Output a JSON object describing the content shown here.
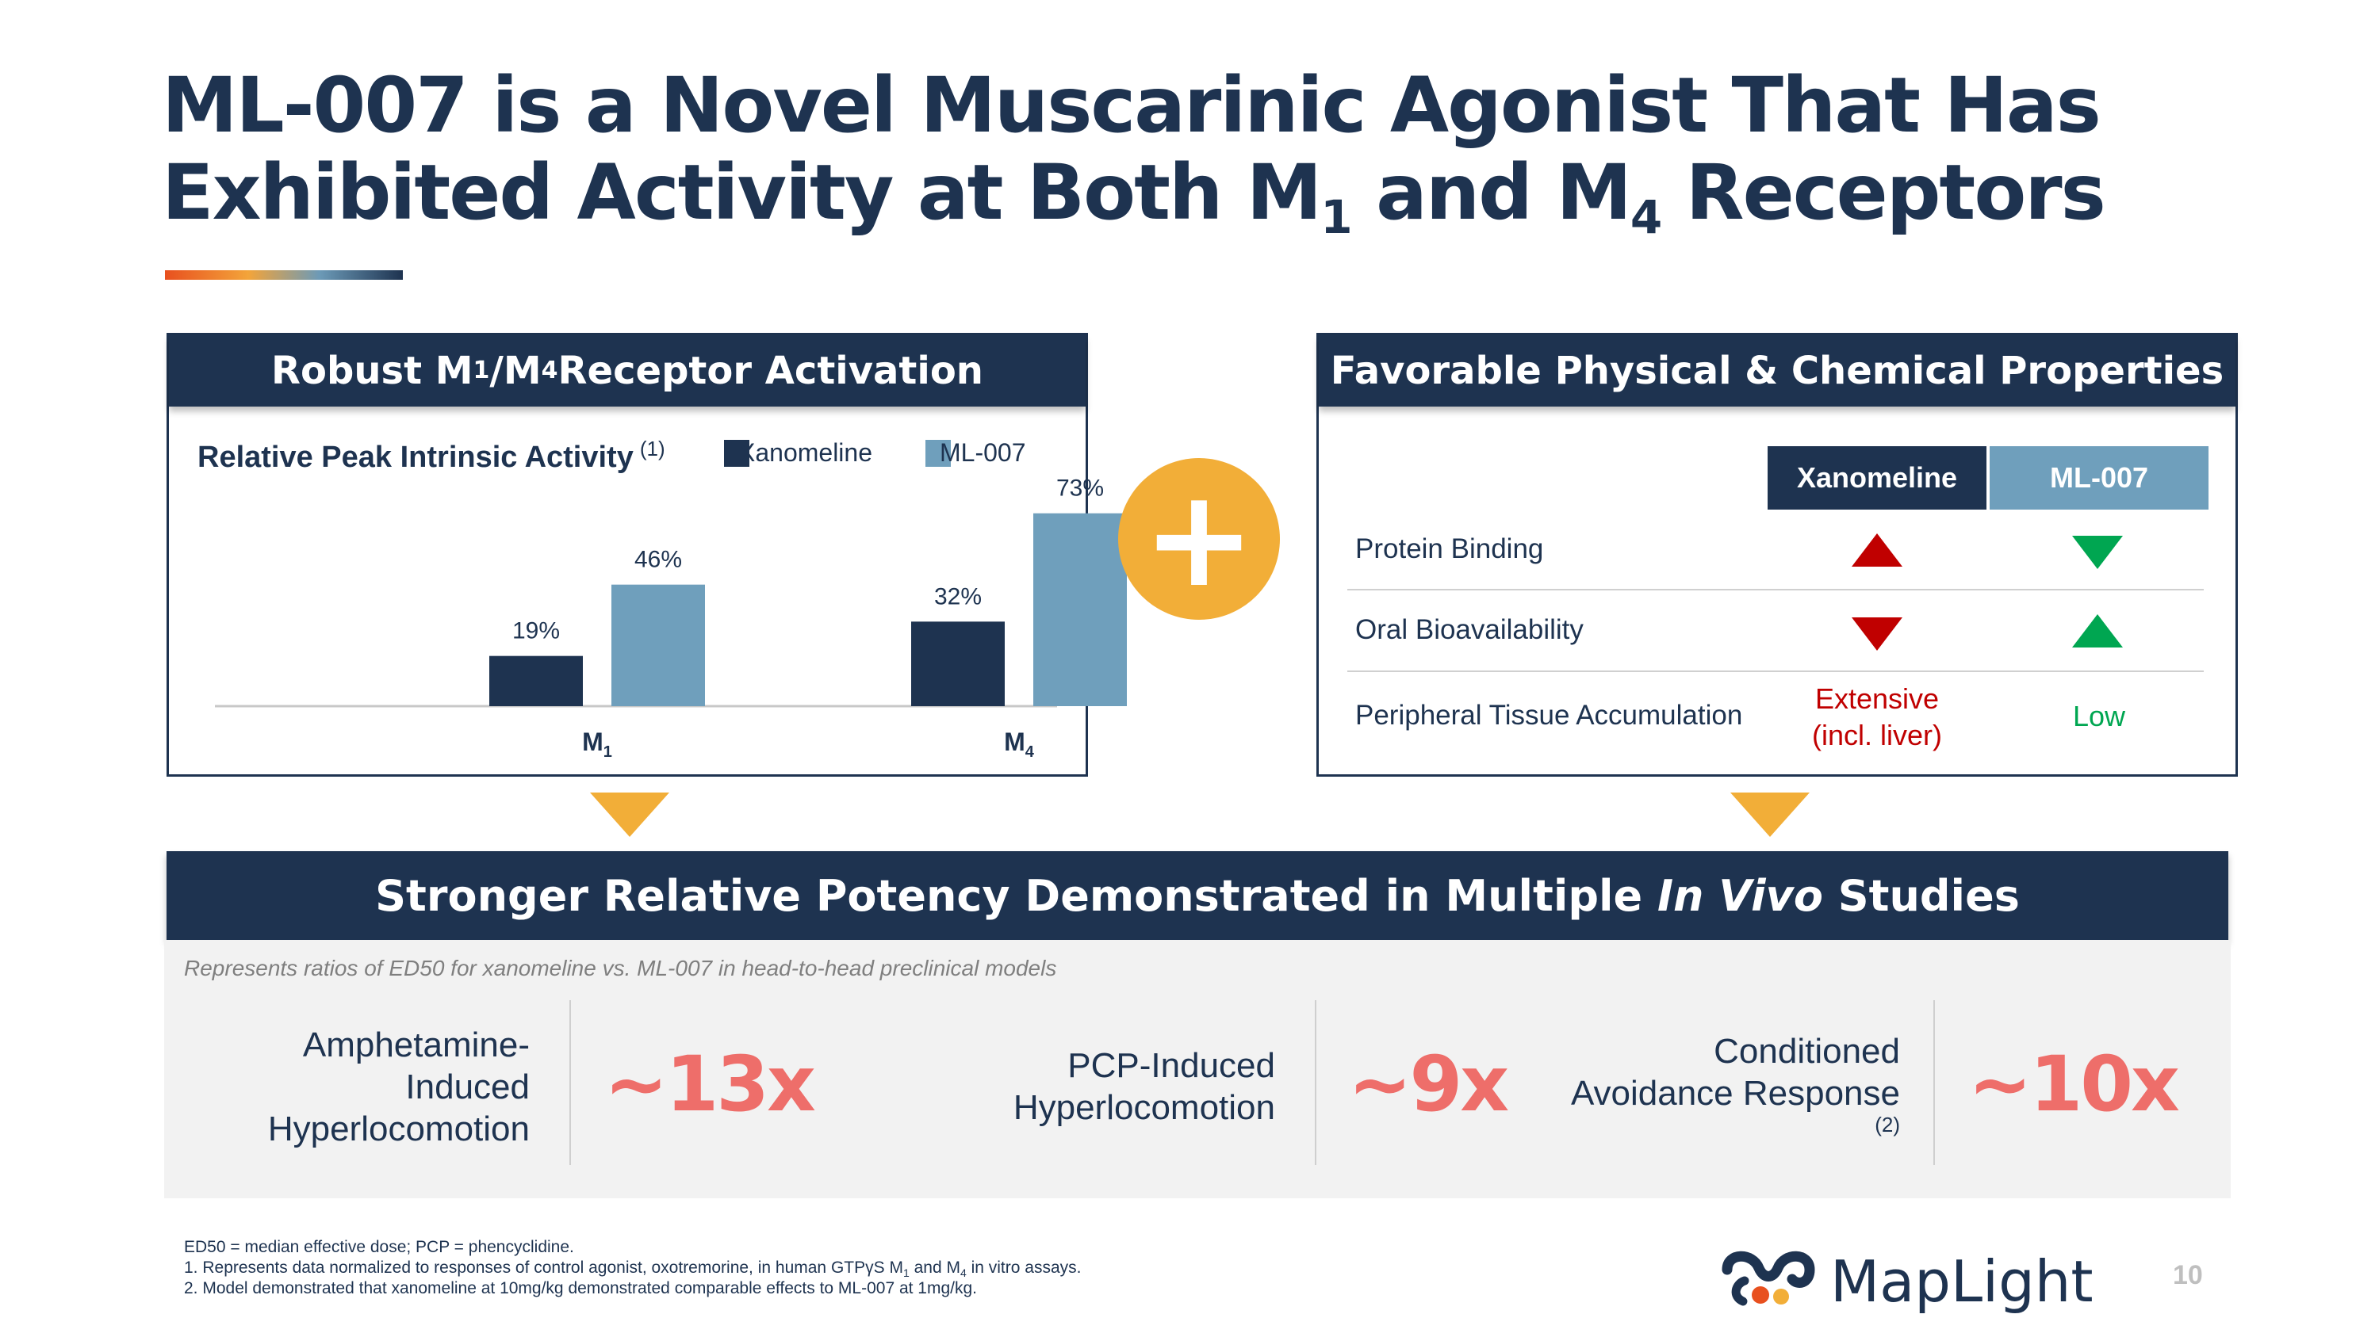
{
  "title": {
    "line1": "ML-007 is a Novel Muscarinic Agonist That Has",
    "line2_pre": "Exhibited Activity at Both M",
    "sub1": "1",
    "line2_mid": " and M",
    "sub2": "4",
    "line2_post": " Receptors"
  },
  "left_panel": {
    "head_pre": "Robust M",
    "head_sub1": "1",
    "head_mid": "/M",
    "head_sub2": "4",
    "head_post": " Receptor Activation"
  },
  "chart_data": {
    "type": "bar",
    "title": "Relative Peak Intrinsic Activity",
    "title_note": "(1)",
    "categories": [
      "M1",
      "M4"
    ],
    "category_labels": [
      {
        "base": "M",
        "sub": "1"
      },
      {
        "base": "M",
        "sub": "4"
      }
    ],
    "series": [
      {
        "name": "Xanomeline",
        "values": [
          19,
          32
        ],
        "labels": [
          "19%",
          "32%"
        ],
        "color": "#1e3350"
      },
      {
        "name": "ML-007",
        "values": [
          46,
          73
        ],
        "labels": [
          "46%",
          "73%"
        ],
        "color": "#6f9fbc"
      }
    ],
    "legend": [
      "Xanomeline",
      "ML-007"
    ],
    "ylim": [
      0,
      90
    ],
    "xlabel": "",
    "ylabel": ""
  },
  "plus_symbol": "+",
  "right_panel": {
    "head": "Favorable Physical & Chemical Properties",
    "columns": [
      "Xanomeline",
      "ML-007"
    ],
    "column_colors": [
      "#1e3350",
      "#6f9fbc"
    ],
    "rows": [
      {
        "label": "Protein Binding",
        "xanomeline": "up-red-triangle",
        "ml007": "down-green-triangle"
      },
      {
        "label": "Oral Bioavailability",
        "xanomeline": "down-red-triangle",
        "ml007": "up-green-triangle"
      },
      {
        "label": "Peripheral Tissue Accumulation",
        "xanomeline_line1": "Extensive",
        "xanomeline_line2": "(incl. liver)",
        "ml007": "Low"
      }
    ],
    "red": "#c00000",
    "green": "#00a651"
  },
  "band": {
    "pre": "Stronger Relative Potency Demonstrated in Multiple ",
    "italic": "In Vivo",
    "post": " Studies"
  },
  "note": "Represents ratios of ED50 for xanomeline vs. ML-007 in head-to-head preclinical models",
  "studies": [
    {
      "lines": [
        "Amphetamine-",
        "Induced",
        "Hyperlocomotion"
      ],
      "ratio": "~13x"
    },
    {
      "lines": [
        "PCP-Induced",
        "Hyperlocomotion"
      ],
      "ratio": "~9x"
    },
    {
      "lines": [
        "Conditioned",
        "Avoidance Response"
      ],
      "note": "(2)",
      "ratio": "~10x"
    }
  ],
  "footnotes": {
    "abbrev": "ED50 = median effective dose; PCP = phencyclidine.",
    "n1_pre": "1.  Represents data normalized to responses of control agonist, oxotremorine, in human GTPγS M",
    "n1_sub1": "1",
    "n1_mid": " and M",
    "n1_sub2": "4",
    "n1_post": " in vitro assays.",
    "n2": "2.  Model demonstrated that xanomeline at 10mg/kg demonstrated comparable effects to ML-007 at 1mg/kg."
  },
  "logo": {
    "text": "MapLight",
    "colors": [
      "#1e3350",
      "#e8501f",
      "#f2ae38"
    ]
  },
  "page_number": "10"
}
